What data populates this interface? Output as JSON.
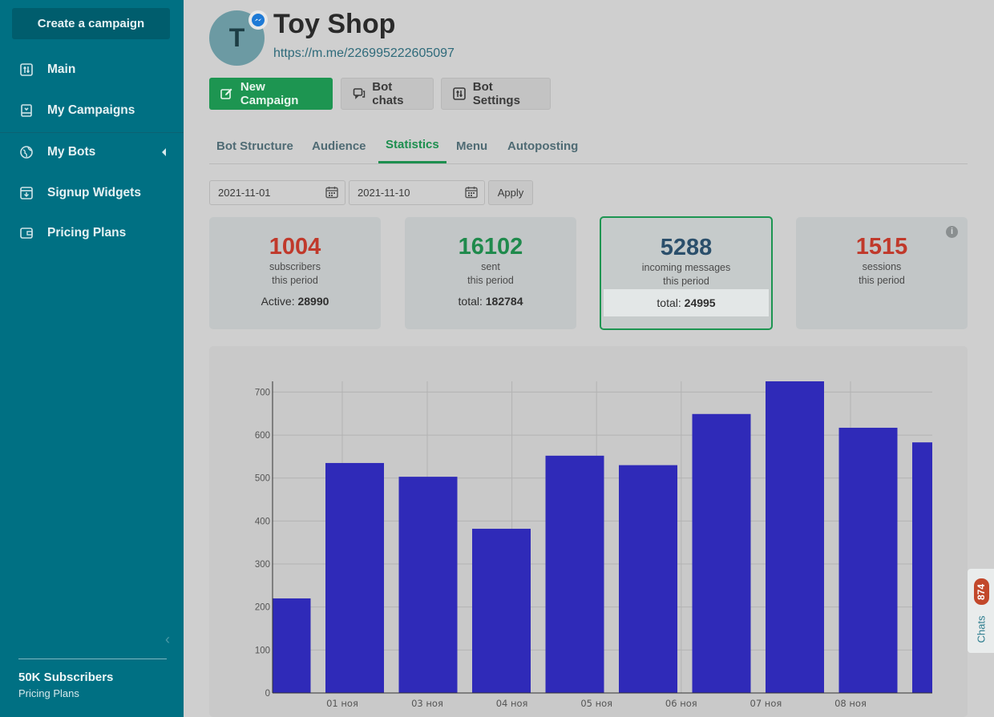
{
  "sidebar": {
    "create_label": "Create a campaign",
    "items": [
      {
        "label": "Main",
        "icon": "sliders-icon"
      },
      {
        "label": "My Campaigns",
        "icon": "campaign-icon"
      },
      {
        "label": "My Bots",
        "icon": "globe-icon"
      },
      {
        "label": "Signup Widgets",
        "icon": "widget-icon"
      },
      {
        "label": "Pricing Plans",
        "icon": "wallet-icon"
      }
    ],
    "plan_title": "50K Subscribers",
    "plan_sub": "Pricing Plans"
  },
  "header": {
    "avatar_letter": "T",
    "title": "Toy Shop",
    "link": "https://m.me/226995222605097"
  },
  "actions": {
    "new_campaign": "New Campaign",
    "bot_chats": "Bot chats",
    "bot_settings": "Bot Settings"
  },
  "tabs": [
    {
      "label": "Bot Structure"
    },
    {
      "label": "Audience"
    },
    {
      "label": "Statistics"
    },
    {
      "label": "Menu"
    },
    {
      "label": "Autoposting"
    }
  ],
  "filter": {
    "date_from": "2021-11-01",
    "date_to": "2021-11-10",
    "apply_label": "Apply"
  },
  "cards": [
    {
      "value": "1004",
      "line1": "subscribers",
      "line2": "this period",
      "total_label": "Active:",
      "total_value": "28990",
      "color": "#c0392b"
    },
    {
      "value": "16102",
      "line1": "sent",
      "line2": "this period",
      "total_label": "total:",
      "total_value": "182784",
      "color": "#1f8a4c"
    },
    {
      "value": "5288",
      "line1": "incoming messages",
      "line2": "this period",
      "total_label": "total:",
      "total_value": "24995",
      "color": "#2b4f6b"
    },
    {
      "value": "1515",
      "line1": "sessions",
      "line2": "this period",
      "total_label": "",
      "total_value": "",
      "color": "#c0392b"
    }
  ],
  "chats": {
    "label": "Chats",
    "count": "874"
  },
  "chart_data": {
    "type": "bar",
    "x": [
      "2021-10-31",
      "2021-11-01",
      "2021-11-02",
      "2021-11-03",
      "2021-11-04",
      "2021-11-05",
      "2021-11-06",
      "2021-11-07",
      "2021-11-08",
      "2021-11-09"
    ],
    "values": [
      220,
      535,
      503,
      382,
      552,
      530,
      649,
      725,
      617,
      583
    ],
    "tick_labels": [
      "01 ноя",
      "03 ноя",
      "04 ноя",
      "05 ноя",
      "06 ноя",
      "07 ноя",
      "08 ноя"
    ],
    "y_ticks": [
      0,
      100,
      200,
      300,
      400,
      500,
      600,
      700
    ],
    "ylim": [
      0,
      725
    ],
    "bar_color": "#2f2ab8",
    "grid": true,
    "title": "",
    "xlabel": "",
    "ylabel": ""
  }
}
